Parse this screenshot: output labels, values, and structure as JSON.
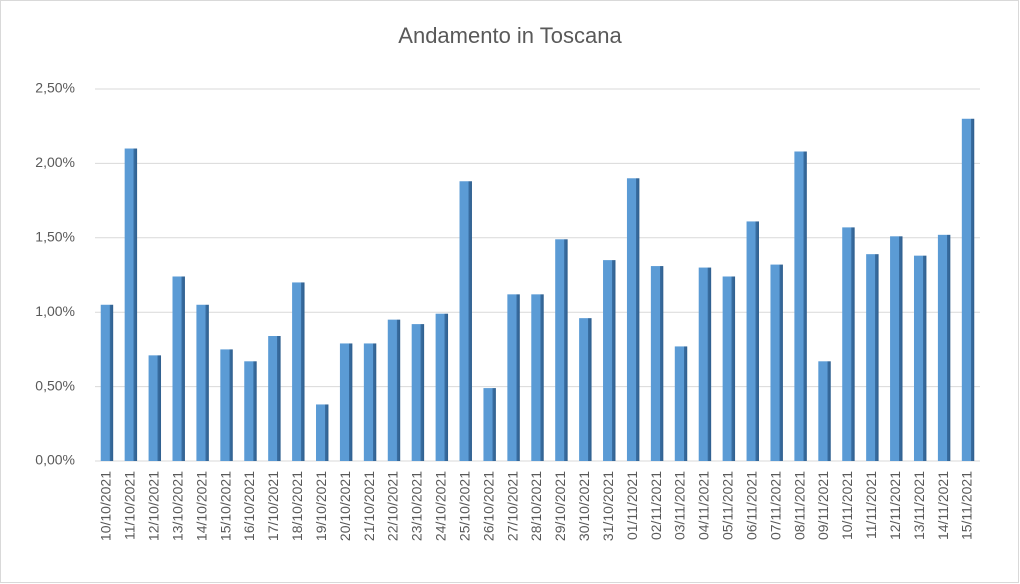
{
  "chart_data": {
    "type": "bar",
    "title": "Andamento in Toscana",
    "categories": [
      "10/10/2021",
      "11/10/2021",
      "12/10/2021",
      "13/10/2021",
      "14/10/2021",
      "15/10/2021",
      "16/10/2021",
      "17/10/2021",
      "18/10/2021",
      "19/10/2021",
      "20/10/2021",
      "21/10/2021",
      "22/10/2021",
      "23/10/2021",
      "24/10/2021",
      "25/10/2021",
      "26/10/2021",
      "27/10/2021",
      "28/10/2021",
      "29/10/2021",
      "30/10/2021",
      "31/10/2021",
      "01/11/2021",
      "02/11/2021",
      "03/11/2021",
      "04/11/2021",
      "05/11/2021",
      "06/11/2021",
      "07/11/2021",
      "08/11/2021",
      "09/11/2021",
      "10/11/2021",
      "11/11/2021",
      "12/11/2021",
      "13/11/2021",
      "14/11/2021",
      "15/11/2021"
    ],
    "values": [
      1.05,
      2.1,
      0.71,
      1.24,
      1.05,
      0.75,
      0.67,
      0.84,
      1.2,
      0.38,
      0.79,
      0.79,
      0.95,
      0.92,
      0.99,
      1.88,
      0.49,
      1.12,
      1.12,
      1.49,
      0.96,
      1.35,
      1.9,
      1.31,
      0.77,
      1.3,
      1.24,
      1.61,
      1.32,
      2.08,
      0.67,
      1.57,
      1.39,
      1.51,
      1.38,
      1.52,
      2.3
    ],
    "color": "#5b9bd5",
    "ylim": [
      0,
      2.5
    ],
    "yticks": [
      {
        "value": 0,
        "label": "0,00%"
      },
      {
        "value": 0.5,
        "label": "0,50%"
      },
      {
        "value": 1,
        "label": "1,00%"
      },
      {
        "value": 1.5,
        "label": "1,50%"
      },
      {
        "value": 2,
        "label": "2,00%"
      },
      {
        "value": 2.5,
        "label": "2,50%"
      }
    ],
    "grid": true
  }
}
